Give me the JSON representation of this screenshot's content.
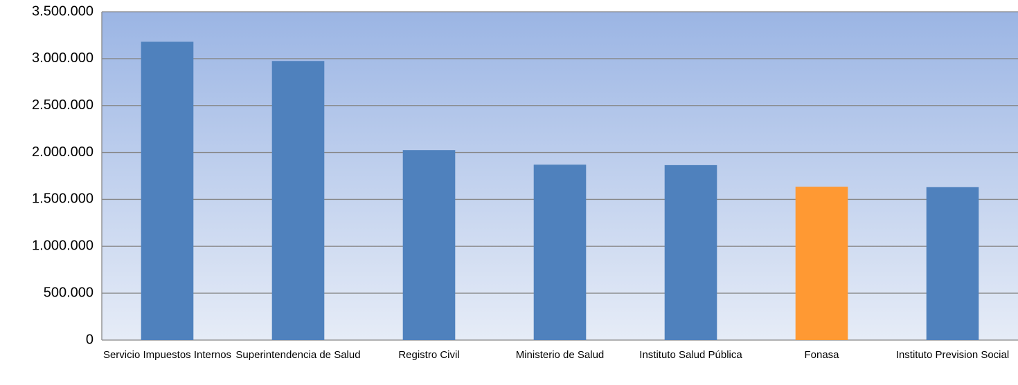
{
  "chart_data": {
    "type": "bar",
    "categories": [
      "Servicio Impuestos Internos",
      "Superintendencia de Salud",
      "Registro Civil",
      "Ministerio de Salud",
      "Instituto Salud Pública",
      "Fonasa",
      "Instituto Prevision Social"
    ],
    "values": [
      3180000,
      2975000,
      2025000,
      1870000,
      1865000,
      1635000,
      1630000
    ],
    "colors": [
      "#4f81bd",
      "#4f81bd",
      "#4f81bd",
      "#4f81bd",
      "#4f81bd",
      "#ff9933",
      "#4f81bd"
    ],
    "ylim": [
      0,
      3500000
    ],
    "yticks": [
      0,
      {
        "value": 500000,
        "label": "500.000"
      },
      {
        "value": 1000000,
        "label": "1.000.000"
      },
      {
        "value": 1500000,
        "label": "1.500.000"
      },
      {
        "value": 2000000,
        "label": "2.000.000"
      },
      {
        "value": 2500000,
        "label": "2.500.000"
      },
      {
        "value": 3000000,
        "label": "3.000.000"
      },
      {
        "value": 3500000,
        "label": "3.500.000"
      }
    ],
    "grid": true
  }
}
